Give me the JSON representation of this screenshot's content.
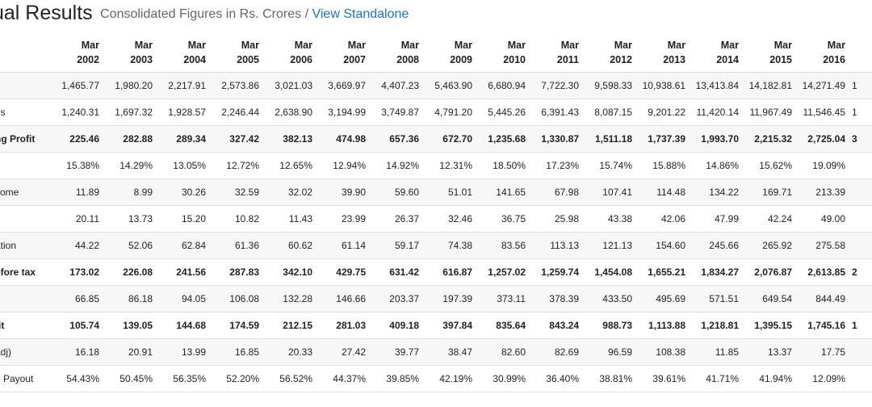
{
  "header": {
    "title": "ual Results",
    "subtitle": "Consolidated Figures in Rs. Crores",
    "separator": "/",
    "link": "View Standalone"
  },
  "table": {
    "columns": [
      {
        "month": "Mar",
        "year": "2002"
      },
      {
        "month": "Mar",
        "year": "2003"
      },
      {
        "month": "Mar",
        "year": "2004"
      },
      {
        "month": "Mar",
        "year": "2005"
      },
      {
        "month": "Mar",
        "year": "2006"
      },
      {
        "month": "Mar",
        "year": "2007"
      },
      {
        "month": "Mar",
        "year": "2008"
      },
      {
        "month": "Mar",
        "year": "2009"
      },
      {
        "month": "Mar",
        "year": "2010"
      },
      {
        "month": "Mar",
        "year": "2011"
      },
      {
        "month": "Mar",
        "year": "2012"
      },
      {
        "month": "Mar",
        "year": "2013"
      },
      {
        "month": "Mar",
        "year": "2014"
      },
      {
        "month": "Mar",
        "year": "2015"
      },
      {
        "month": "Mar",
        "year": "2016"
      }
    ],
    "rows": [
      {
        "label": "",
        "bold": false,
        "values": [
          "1,465.77",
          "1,980.20",
          "2,217.91",
          "2,573.86",
          "3,021.03",
          "3,669.97",
          "4,407.23",
          "5,463.90",
          "6,680.94",
          "7,722.30",
          "9,598.33",
          "10,938.61",
          "13,413.84",
          "14,182.81",
          "14,271.49"
        ],
        "extra": "1"
      },
      {
        "label": "es",
        "bold": false,
        "values": [
          "1,240.31",
          "1,697.32",
          "1,928.57",
          "2,246.44",
          "2,638.90",
          "3,194.99",
          "3,749.87",
          "4,791.20",
          "5,445.26",
          "6,391.43",
          "8,087.15",
          "9,201.22",
          "11,420.14",
          "11,967.49",
          "11,546.45"
        ],
        "extra": "1"
      },
      {
        "label": "ng Profit",
        "bold": true,
        "values": [
          "225.46",
          "282.88",
          "289.34",
          "327.42",
          "382.13",
          "474.98",
          "657.36",
          "672.70",
          "1,235.68",
          "1,330.87",
          "1,511.18",
          "1,737.39",
          "1,993.70",
          "2,215.32",
          "2,725.04"
        ],
        "extra": "3"
      },
      {
        "label": "",
        "bold": false,
        "values": [
          "15.38%",
          "14.29%",
          "13.05%",
          "12.72%",
          "12.65%",
          "12.94%",
          "14.92%",
          "12.31%",
          "18.50%",
          "17.23%",
          "15.74%",
          "15.88%",
          "14.86%",
          "15.62%",
          "19.09%"
        ],
        "extra": ""
      },
      {
        "label": "come",
        "bold": false,
        "values": [
          "11.89",
          "8.99",
          "30.26",
          "32.59",
          "32.02",
          "39.90",
          "59.60",
          "51.01",
          "141.65",
          "67.98",
          "107.41",
          "114.48",
          "134.22",
          "169.71",
          "213.39"
        ],
        "extra": ""
      },
      {
        "label": "",
        "bold": false,
        "values": [
          "20.11",
          "13.73",
          "15.20",
          "10.82",
          "11.43",
          "23.99",
          "26.37",
          "32.46",
          "36.75",
          "25.98",
          "43.38",
          "42.06",
          "47.99",
          "42.24",
          "49.00"
        ],
        "extra": ""
      },
      {
        "label": "ation",
        "bold": false,
        "values": [
          "44.22",
          "52.06",
          "62.84",
          "61.36",
          "60.62",
          "61.14",
          "59.17",
          "74.38",
          "83.56",
          "113.13",
          "121.13",
          "154.60",
          "245.66",
          "265.92",
          "275.58"
        ],
        "extra": ""
      },
      {
        "label": "efore tax",
        "bold": true,
        "values": [
          "173.02",
          "226.08",
          "241.56",
          "287.83",
          "342.10",
          "429.75",
          "631.42",
          "616.87",
          "1,257.02",
          "1,259.74",
          "1,454.08",
          "1,655.21",
          "1,834.27",
          "2,076.87",
          "2,613.85"
        ],
        "extra": "2"
      },
      {
        "label": "",
        "bold": false,
        "values": [
          "66.85",
          "86.18",
          "94.05",
          "106.08",
          "132.28",
          "146.66",
          "203.37",
          "197.39",
          "373.11",
          "378.39",
          "433.50",
          "495.69",
          "571.51",
          "649.54",
          "844.49"
        ],
        "extra": ""
      },
      {
        "label": "fit",
        "bold": true,
        "values": [
          "105.74",
          "139.05",
          "144.68",
          "174.59",
          "212.15",
          "281.03",
          "409.18",
          "397.84",
          "835.64",
          "843.24",
          "988.73",
          "1,113.88",
          "1,218.81",
          "1,395.15",
          "1,745.16"
        ],
        "extra": "1"
      },
      {
        "label": "adj)",
        "bold": false,
        "values": [
          "16.18",
          "20.91",
          "13.99",
          "16.85",
          "20.33",
          "27.42",
          "39.77",
          "38.47",
          "82.60",
          "82.69",
          "96.59",
          "108.38",
          "11.85",
          "13.37",
          "17.75"
        ],
        "extra": ""
      },
      {
        "label": "d Payout",
        "bold": false,
        "values": [
          "54.43%",
          "50.45%",
          "56.35%",
          "52.20%",
          "56.52%",
          "44.37%",
          "39.85%",
          "42.19%",
          "30.99%",
          "36.40%",
          "38.81%",
          "39.61%",
          "41.71%",
          "41.94%",
          "12.09%"
        ],
        "extra": ""
      }
    ]
  }
}
